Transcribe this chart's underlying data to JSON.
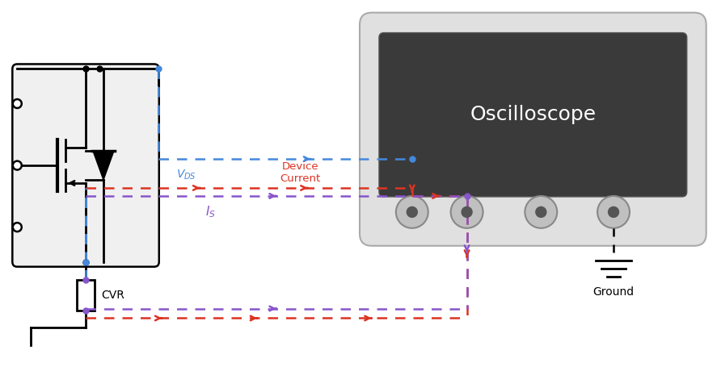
{
  "bg_color": "#ffffff",
  "mosfet_box_color": "#f0f0f0",
  "mosfet_box_border": "#000000",
  "osc_body_color": "#e0e0e0",
  "osc_screen_color": "#3a3a3a",
  "osc_text": "Oscilloscope",
  "osc_text_color": "#ffffff",
  "blue_color": "#4488dd",
  "red_color": "#dd3322",
  "purple_color": "#8855cc",
  "black_color": "#000000",
  "cvr_label": "CVR",
  "vds_label_main": "V",
  "vds_label_sub": "DS",
  "is_label_main": "I",
  "is_label_sub": "S",
  "device_current_label": "Device\nCurrent",
  "ground_label": "Ground"
}
